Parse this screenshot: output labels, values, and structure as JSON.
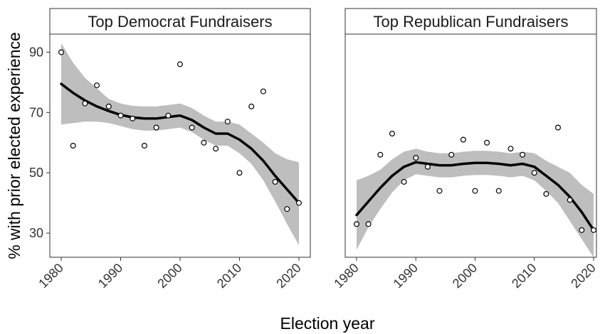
{
  "chart_data": {
    "type": "scatter",
    "xlabel": "Election year",
    "ylabel": "% with prior elected experience",
    "xlim": [
      1979,
      2021
    ],
    "ylim": [
      22,
      96
    ],
    "xticks": [
      1980,
      1990,
      2000,
      2010,
      2020
    ],
    "yticks": [
      30,
      50,
      70,
      90
    ],
    "grid": false,
    "shared_y_axis": true,
    "colors": {
      "points": "#000000",
      "trend_line": "#000000",
      "confidence_band": "#bebebe",
      "panel_border": "#333333",
      "strip_fill": "#ffffff"
    },
    "panels": [
      {
        "title": "Top Democrat Fundraisers",
        "points": [
          {
            "x": 1980,
            "y": 90
          },
          {
            "x": 1982,
            "y": 59
          },
          {
            "x": 1984,
            "y": 73
          },
          {
            "x": 1986,
            "y": 79
          },
          {
            "x": 1988,
            "y": 72
          },
          {
            "x": 1990,
            "y": 69
          },
          {
            "x": 1992,
            "y": 68
          },
          {
            "x": 1994,
            "y": 59
          },
          {
            "x": 1996,
            "y": 65
          },
          {
            "x": 1998,
            "y": 69
          },
          {
            "x": 2000,
            "y": 86
          },
          {
            "x": 2002,
            "y": 65
          },
          {
            "x": 2004,
            "y": 60
          },
          {
            "x": 2006,
            "y": 58
          },
          {
            "x": 2008,
            "y": 67
          },
          {
            "x": 2010,
            "y": 50
          },
          {
            "x": 2012,
            "y": 72
          },
          {
            "x": 2014,
            "y": 77
          },
          {
            "x": 2016,
            "y": 47
          },
          {
            "x": 2018,
            "y": 38
          },
          {
            "x": 2020,
            "y": 40
          }
        ],
        "trend": [
          {
            "x": 1980,
            "y": 79.5,
            "lo": 66,
            "hi": 93
          },
          {
            "x": 1982,
            "y": 76.5,
            "lo": 66.5,
            "hi": 86.5
          },
          {
            "x": 1984,
            "y": 74,
            "lo": 67,
            "hi": 81.5
          },
          {
            "x": 1986,
            "y": 72,
            "lo": 67,
            "hi": 78
          },
          {
            "x": 1988,
            "y": 70.5,
            "lo": 66.5,
            "hi": 74.5
          },
          {
            "x": 1990,
            "y": 69.2,
            "lo": 65.5,
            "hi": 73
          },
          {
            "x": 1992,
            "y": 68.4,
            "lo": 64.5,
            "hi": 72.2
          },
          {
            "x": 1994,
            "y": 68,
            "lo": 64,
            "hi": 72
          },
          {
            "x": 1996,
            "y": 68,
            "lo": 64,
            "hi": 72
          },
          {
            "x": 1998,
            "y": 68.5,
            "lo": 64.5,
            "hi": 72.5
          },
          {
            "x": 2000,
            "y": 69,
            "lo": 65,
            "hi": 73
          },
          {
            "x": 2002,
            "y": 67.5,
            "lo": 63.5,
            "hi": 71.5
          },
          {
            "x": 2004,
            "y": 65,
            "lo": 61,
            "hi": 69
          },
          {
            "x": 2006,
            "y": 63,
            "lo": 59,
            "hi": 67
          },
          {
            "x": 2008,
            "y": 63,
            "lo": 59,
            "hi": 67
          },
          {
            "x": 2010,
            "y": 61,
            "lo": 56.5,
            "hi": 66
          },
          {
            "x": 2012,
            "y": 58,
            "lo": 53,
            "hi": 63
          },
          {
            "x": 2014,
            "y": 54,
            "lo": 47.5,
            "hi": 60
          },
          {
            "x": 2016,
            "y": 49,
            "lo": 40.5,
            "hi": 56.5
          },
          {
            "x": 2018,
            "y": 44.5,
            "lo": 33,
            "hi": 54.5
          },
          {
            "x": 2020,
            "y": 40,
            "lo": 26,
            "hi": 53.5
          }
        ]
      },
      {
        "title": "Top Republican Fundraisers",
        "points": [
          {
            "x": 1980,
            "y": 33
          },
          {
            "x": 1982,
            "y": 33
          },
          {
            "x": 1984,
            "y": 56
          },
          {
            "x": 1986,
            "y": 63
          },
          {
            "x": 1988,
            "y": 47
          },
          {
            "x": 1990,
            "y": 55
          },
          {
            "x": 1992,
            "y": 52
          },
          {
            "x": 1994,
            "y": 44
          },
          {
            "x": 1996,
            "y": 56
          },
          {
            "x": 1998,
            "y": 61
          },
          {
            "x": 2000,
            "y": 44
          },
          {
            "x": 2002,
            "y": 60
          },
          {
            "x": 2004,
            "y": 44
          },
          {
            "x": 2006,
            "y": 58
          },
          {
            "x": 2008,
            "y": 56
          },
          {
            "x": 2010,
            "y": 50
          },
          {
            "x": 2012,
            "y": 43
          },
          {
            "x": 2014,
            "y": 65
          },
          {
            "x": 2016,
            "y": 41
          },
          {
            "x": 2018,
            "y": 31
          },
          {
            "x": 2020,
            "y": 31
          }
        ],
        "trend": [
          {
            "x": 1980,
            "y": 36,
            "lo": 24.5,
            "hi": 47.5
          },
          {
            "x": 1982,
            "y": 40.5,
            "lo": 32,
            "hi": 49
          },
          {
            "x": 1984,
            "y": 45,
            "lo": 38,
            "hi": 51
          },
          {
            "x": 1986,
            "y": 49,
            "lo": 43.5,
            "hi": 54.5
          },
          {
            "x": 1988,
            "y": 52,
            "lo": 47.5,
            "hi": 57
          },
          {
            "x": 1990,
            "y": 53.5,
            "lo": 49.5,
            "hi": 58
          },
          {
            "x": 1992,
            "y": 53,
            "lo": 49,
            "hi": 57
          },
          {
            "x": 1994,
            "y": 52.5,
            "lo": 48.5,
            "hi": 56.5
          },
          {
            "x": 1996,
            "y": 52.5,
            "lo": 48.5,
            "hi": 56.5
          },
          {
            "x": 1998,
            "y": 53,
            "lo": 49,
            "hi": 57
          },
          {
            "x": 2000,
            "y": 53.3,
            "lo": 49.3,
            "hi": 57.3
          },
          {
            "x": 2002,
            "y": 53.3,
            "lo": 49.3,
            "hi": 57.3
          },
          {
            "x": 2004,
            "y": 53,
            "lo": 49,
            "hi": 57
          },
          {
            "x": 2006,
            "y": 52.5,
            "lo": 48.5,
            "hi": 56.5
          },
          {
            "x": 2008,
            "y": 53,
            "lo": 49,
            "hi": 57
          },
          {
            "x": 2010,
            "y": 52,
            "lo": 47.5,
            "hi": 56.5
          },
          {
            "x": 2012,
            "y": 49,
            "lo": 44,
            "hi": 54
          },
          {
            "x": 2014,
            "y": 46,
            "lo": 40,
            "hi": 52
          },
          {
            "x": 2016,
            "y": 42,
            "lo": 34,
            "hi": 50
          },
          {
            "x": 2018,
            "y": 37,
            "lo": 28,
            "hi": 46
          },
          {
            "x": 2020,
            "y": 31,
            "lo": 22,
            "hi": 43
          }
        ]
      }
    ]
  }
}
